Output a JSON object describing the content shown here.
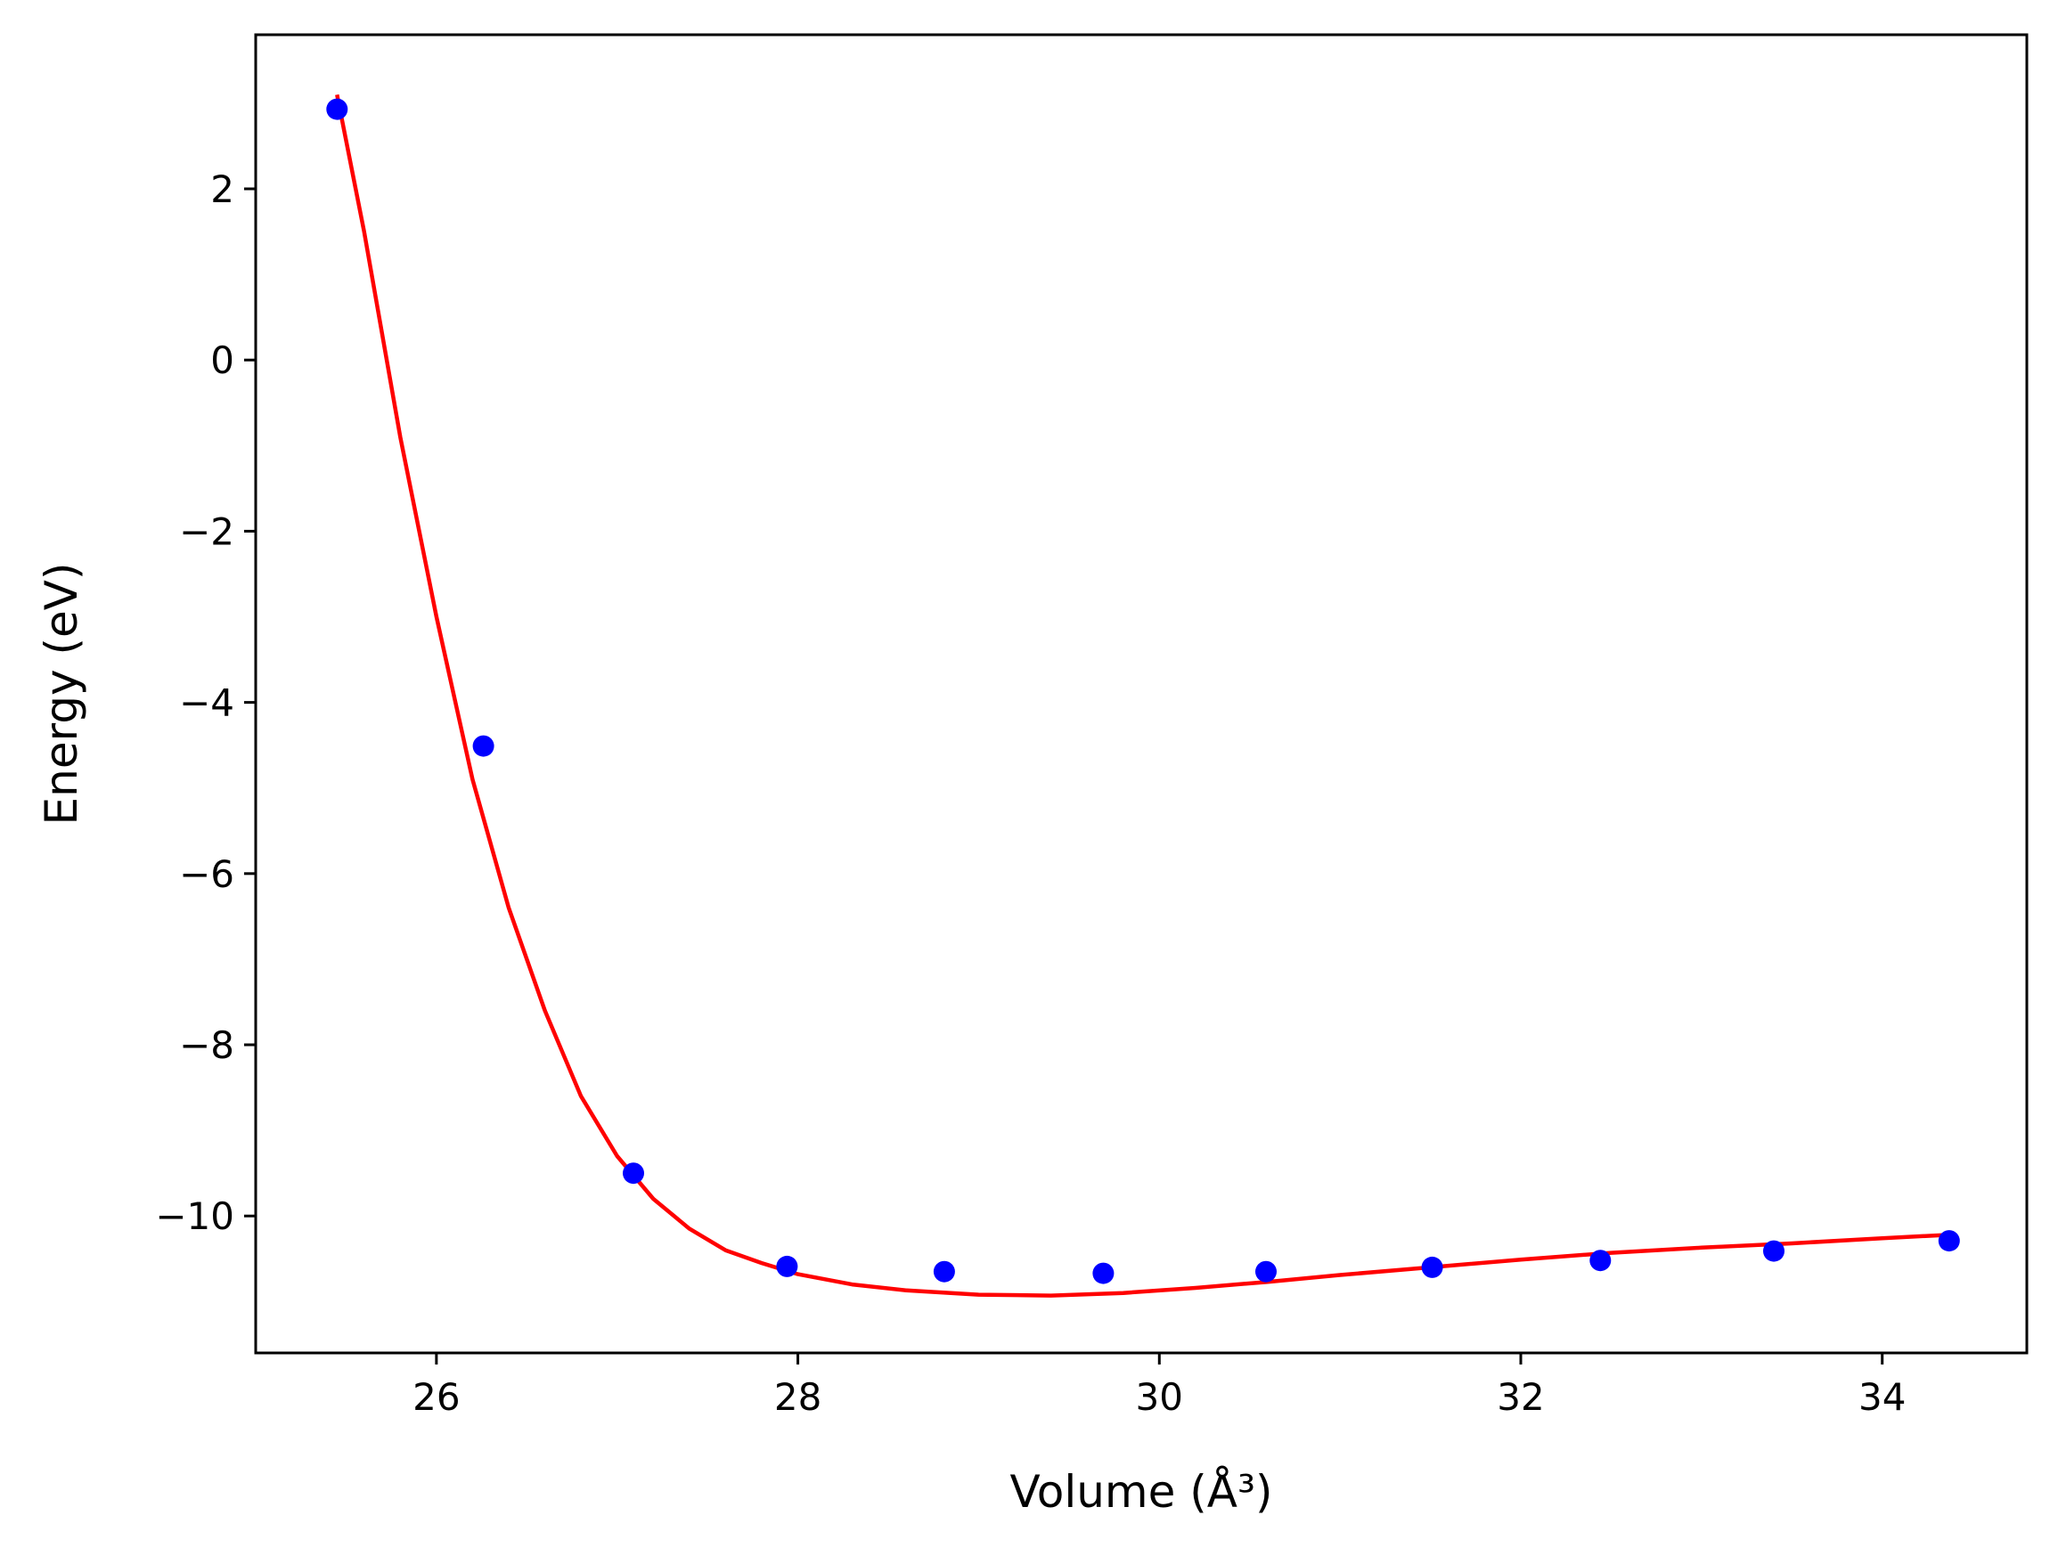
{
  "chart_data": {
    "type": "scatter",
    "title": "",
    "xlabel": "Volume (Å³)",
    "ylabel": "Energy (eV)",
    "xlim": [
      25.0,
      34.8
    ],
    "ylim": [
      -11.6,
      3.8
    ],
    "xticks": [
      26,
      28,
      30,
      32,
      34
    ],
    "yticks": [
      2,
      0,
      -2,
      -4,
      -6,
      -8,
      -10
    ],
    "xtick_labels": [
      "26",
      "28",
      "30",
      "32",
      "34"
    ],
    "ytick_labels": [
      "2",
      "0",
      "−2",
      "−4",
      "−6",
      "−8",
      "−10"
    ],
    "grid": false,
    "legend": "none",
    "series": [
      {
        "kind": "scatter",
        "color": "#0000ff",
        "marker": "circle",
        "x": [
          25.45,
          26.26,
          27.09,
          27.94,
          28.81,
          29.69,
          30.59,
          31.51,
          32.44,
          33.4,
          34.37
        ],
        "y": [
          2.93,
          -4.51,
          -9.5,
          -10.59,
          -10.65,
          -10.67,
          -10.65,
          -10.6,
          -10.52,
          -10.41,
          -10.29
        ]
      },
      {
        "kind": "line",
        "color": "#ff0000",
        "x": [
          25.45,
          25.6,
          25.8,
          26.0,
          26.2,
          26.4,
          26.6,
          26.8,
          27.0,
          27.2,
          27.4,
          27.6,
          27.8,
          28.0,
          28.3,
          28.6,
          29.0,
          29.4,
          29.8,
          30.2,
          30.6,
          31.0,
          31.5,
          32.0,
          32.5,
          33.0,
          33.5,
          34.0,
          34.37
        ],
        "y": [
          3.1,
          1.5,
          -0.9,
          -3.0,
          -4.9,
          -6.4,
          -7.6,
          -8.6,
          -9.3,
          -9.8,
          -10.15,
          -10.4,
          -10.55,
          -10.68,
          -10.8,
          -10.87,
          -10.92,
          -10.93,
          -10.9,
          -10.84,
          -10.77,
          -10.69,
          -10.6,
          -10.51,
          -10.43,
          -10.37,
          -10.32,
          -10.26,
          -10.22
        ]
      }
    ]
  }
}
